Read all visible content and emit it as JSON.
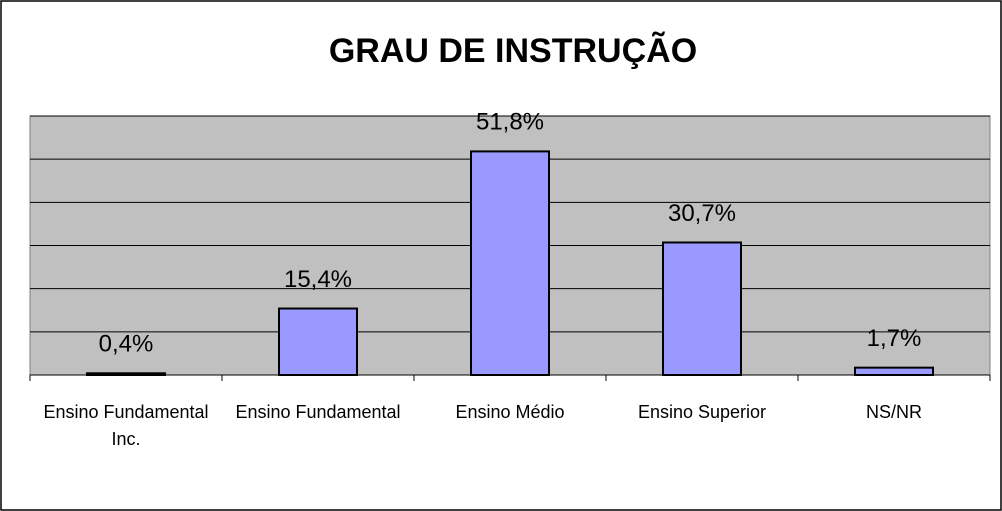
{
  "chart_data": {
    "type": "bar",
    "title": "GRAU DE INSTRUÇÃO",
    "categories": [
      "Ensino Fundamental Inc.",
      "Ensino Fundamental",
      "Ensino Médio",
      "Ensino Superior",
      "NS/NR"
    ],
    "values": [
      0.4,
      15.4,
      51.8,
      30.7,
      1.7
    ],
    "value_labels": [
      "0,4%",
      "15,4%",
      "51,8%",
      "30,7%",
      "1,7%"
    ],
    "color": "#9999ff",
    "ylim": [
      0,
      60
    ],
    "yticks": [
      0,
      10,
      20,
      30,
      40,
      50,
      60
    ],
    "grid": true
  }
}
